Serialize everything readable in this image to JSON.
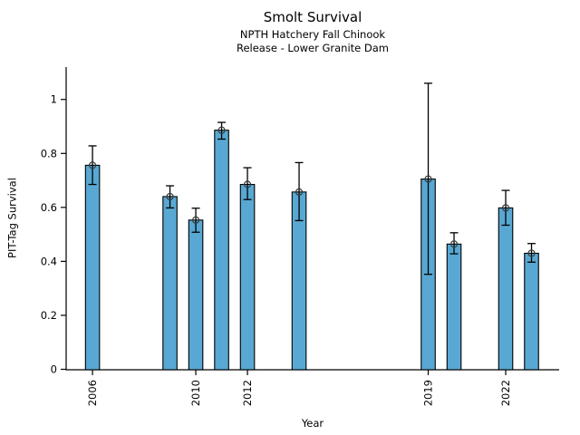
{
  "figure": {
    "title": "Smolt Survival",
    "subtitle_line1": "NPTH Hatchery Fall Chinook",
    "subtitle_line2": "Release - Lower Granite Dam"
  },
  "chart_data": {
    "type": "bar",
    "title": "Smolt Survival",
    "subtitle": [
      "NPTH Hatchery Fall Chinook",
      "Release - Lower Granite Dam"
    ],
    "xlabel": "Year",
    "ylabel": "PIT-Tag Survival",
    "categories": [
      2006,
      2009,
      2010,
      2011,
      2012,
      2014,
      2019,
      2020,
      2022,
      2023
    ],
    "values": [
      0.756,
      0.64,
      0.553,
      0.886,
      0.685,
      0.657,
      0.705,
      0.464,
      0.598,
      0.43
    ],
    "error_low": [
      0.685,
      0.598,
      0.508,
      0.853,
      0.629,
      0.551,
      0.352,
      0.428,
      0.534,
      0.397
    ],
    "error_high": [
      0.828,
      0.68,
      0.597,
      0.915,
      0.747,
      0.766,
      1.06,
      0.506,
      0.663,
      0.466
    ],
    "x_ticks": [
      2006,
      2010,
      2012,
      2019,
      2022
    ],
    "x_tick_labels": [
      "2006",
      "2010",
      "2012",
      "2019",
      "2022"
    ],
    "y_ticks": [
      0,
      0.2,
      0.4,
      0.6,
      0.8,
      1
    ],
    "y_tick_labels": [
      "0",
      "0.2",
      "0.4",
      "0.6",
      "0.8",
      "1"
    ],
    "xlim": [
      2004.98,
      2024.07
    ],
    "ylim": [
      0,
      1.12
    ],
    "bar_color": "#58A8D3",
    "bar_edge_color": "#000000",
    "error_color": "#000000",
    "axis_color": "#000000",
    "marker": "open-circle",
    "marker_color": "#3a3a3a",
    "grid": false
  }
}
